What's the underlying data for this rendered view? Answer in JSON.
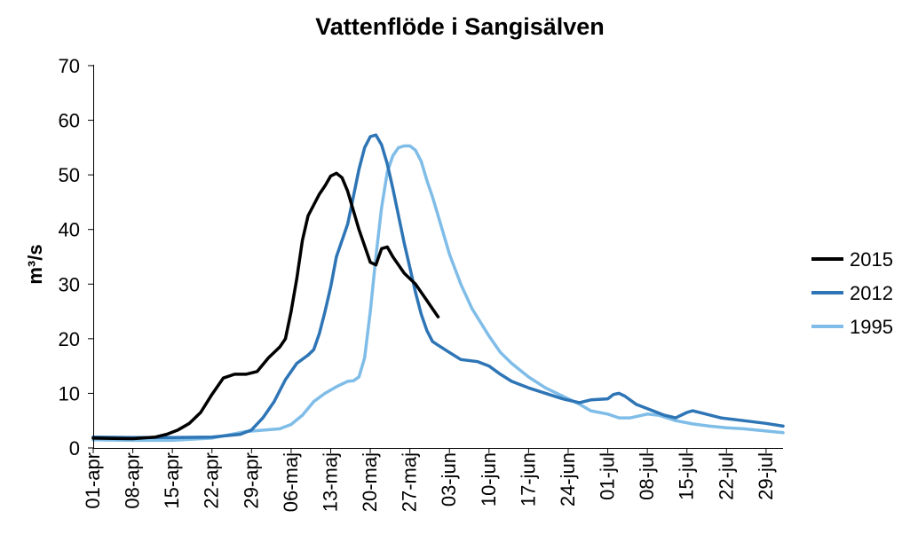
{
  "chart_data": {
    "type": "line",
    "title": "Vattenflöde i Sangisälven",
    "xlabel": "",
    "ylabel": "m³/s",
    "ylim": [
      0,
      70
    ],
    "yticks": [
      "0",
      "10",
      "20",
      "30",
      "40",
      "50",
      "60",
      "70"
    ],
    "xlim_days": [
      0,
      122
    ],
    "xtick_labels": [
      "01-apr",
      "08-apr",
      "15-apr",
      "22-apr",
      "29-apr",
      "06-maj",
      "13-maj",
      "20-maj",
      "27-maj",
      "03-jun",
      "10-jun",
      "17-jun",
      "24-jun",
      "01-jul",
      "08-jul",
      "15-jul",
      "22-jul",
      "29-jul"
    ],
    "x_unit": "days since 01-apr",
    "grid": false,
    "legend_position": "right",
    "series": [
      {
        "name": "2015",
        "color": "#000000",
        "points": [
          [
            0,
            1.8
          ],
          [
            7,
            1.7
          ],
          [
            11,
            2.0
          ],
          [
            13,
            2.5
          ],
          [
            15,
            3.3
          ],
          [
            17,
            4.5
          ],
          [
            19,
            6.5
          ],
          [
            21,
            9.8
          ],
          [
            23,
            12.8
          ],
          [
            25,
            13.5
          ],
          [
            27,
            13.5
          ],
          [
            29,
            14.0
          ],
          [
            31,
            16.5
          ],
          [
            33,
            18.5
          ],
          [
            34,
            20.0
          ],
          [
            35,
            25.0
          ],
          [
            36,
            31.0
          ],
          [
            37,
            38.0
          ],
          [
            38,
            42.5
          ],
          [
            39,
            44.5
          ],
          [
            40,
            46.5
          ],
          [
            41,
            48.0
          ],
          [
            42,
            49.8
          ],
          [
            43,
            50.3
          ],
          [
            44,
            49.5
          ],
          [
            45,
            47.0
          ],
          [
            46,
            43.5
          ],
          [
            47,
            40.0
          ],
          [
            48,
            37.0
          ],
          [
            49,
            34.0
          ],
          [
            50,
            33.5
          ],
          [
            51,
            36.5
          ],
          [
            52,
            36.8
          ],
          [
            53,
            35.0
          ],
          [
            54,
            33.5
          ],
          [
            55,
            32.0
          ],
          [
            57,
            30.0
          ],
          [
            58,
            28.5
          ],
          [
            59,
            27.0
          ],
          [
            60,
            25.5
          ],
          [
            61,
            24.0
          ]
        ]
      },
      {
        "name": "2012",
        "color": "#2e75b6",
        "points": [
          [
            0,
            2.0
          ],
          [
            7,
            1.9
          ],
          [
            14,
            1.9
          ],
          [
            21,
            2.0
          ],
          [
            26,
            2.5
          ],
          [
            28,
            3.3
          ],
          [
            30,
            5.5
          ],
          [
            32,
            8.5
          ],
          [
            34,
            12.5
          ],
          [
            36,
            15.5
          ],
          [
            38,
            17.0
          ],
          [
            39,
            18.0
          ],
          [
            40,
            21.0
          ],
          [
            41,
            25.0
          ],
          [
            42,
            29.5
          ],
          [
            43,
            35.0
          ],
          [
            45,
            41.0
          ],
          [
            46,
            46.0
          ],
          [
            47,
            51.0
          ],
          [
            48,
            55.0
          ],
          [
            49,
            57.0
          ],
          [
            50,
            57.3
          ],
          [
            51,
            55.5
          ],
          [
            52,
            52.0
          ],
          [
            53,
            47.5
          ],
          [
            54,
            42.5
          ],
          [
            55,
            37.5
          ],
          [
            56,
            33.0
          ],
          [
            57,
            28.5
          ],
          [
            58,
            24.5
          ],
          [
            59,
            21.5
          ],
          [
            60,
            19.5
          ],
          [
            61,
            18.8
          ],
          [
            63,
            17.5
          ],
          [
            65,
            16.2
          ],
          [
            68,
            15.8
          ],
          [
            70,
            15.0
          ],
          [
            72,
            13.5
          ],
          [
            74,
            12.2
          ],
          [
            77,
            11.0
          ],
          [
            80,
            10.0
          ],
          [
            83,
            9.0
          ],
          [
            86,
            8.3
          ],
          [
            88,
            8.8
          ],
          [
            91,
            9.0
          ],
          [
            92,
            9.8
          ],
          [
            93,
            10.0
          ],
          [
            94,
            9.5
          ],
          [
            96,
            8.0
          ],
          [
            99,
            6.8
          ],
          [
            101,
            6.0
          ],
          [
            103,
            5.5
          ],
          [
            105,
            6.5
          ],
          [
            106,
            6.8
          ],
          [
            108,
            6.3
          ],
          [
            111,
            5.5
          ],
          [
            115,
            5.0
          ],
          [
            119,
            4.5
          ],
          [
            122,
            4.0
          ]
        ]
      },
      {
        "name": "1995",
        "color": "#7fbde8",
        "points": [
          [
            0,
            1.5
          ],
          [
            7,
            1.4
          ],
          [
            14,
            1.4
          ],
          [
            21,
            1.8
          ],
          [
            27,
            3.0
          ],
          [
            33,
            3.5
          ],
          [
            35,
            4.3
          ],
          [
            37,
            6.0
          ],
          [
            39,
            8.5
          ],
          [
            41,
            10.0
          ],
          [
            43,
            11.2
          ],
          [
            45,
            12.2
          ],
          [
            46,
            12.3
          ],
          [
            47,
            13.0
          ],
          [
            48,
            16.5
          ],
          [
            49,
            25.0
          ],
          [
            50,
            35.0
          ],
          [
            51,
            44.0
          ],
          [
            52,
            50.5
          ],
          [
            53,
            53.5
          ],
          [
            54,
            55.0
          ],
          [
            55,
            55.3
          ],
          [
            56,
            55.3
          ],
          [
            57,
            54.5
          ],
          [
            58,
            52.5
          ],
          [
            59,
            49.0
          ],
          [
            60,
            46.0
          ],
          [
            61,
            42.5
          ],
          [
            62,
            39.0
          ],
          [
            63,
            35.5
          ],
          [
            65,
            30.0
          ],
          [
            67,
            25.5
          ],
          [
            70,
            20.5
          ],
          [
            72,
            17.5
          ],
          [
            74,
            15.5
          ],
          [
            77,
            13.0
          ],
          [
            80,
            11.0
          ],
          [
            83,
            9.5
          ],
          [
            86,
            8.0
          ],
          [
            88,
            6.8
          ],
          [
            91,
            6.2
          ],
          [
            93,
            5.5
          ],
          [
            95,
            5.5
          ],
          [
            98,
            6.2
          ],
          [
            100,
            6.0
          ],
          [
            103,
            5.0
          ],
          [
            106,
            4.4
          ],
          [
            109,
            4.0
          ],
          [
            112,
            3.7
          ],
          [
            115,
            3.5
          ],
          [
            118,
            3.2
          ],
          [
            122,
            2.8
          ]
        ]
      }
    ]
  }
}
